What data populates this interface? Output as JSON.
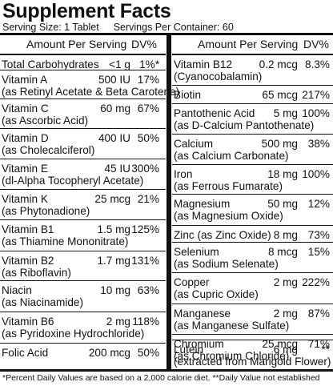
{
  "header": {
    "title": "Supplement Facts",
    "serving_size": "Serving Size: 1 Tablet",
    "servings_per_container": "Servings Per Container: 60",
    "amount_per_serving": "Amount Per Serving",
    "dv_percent": "DV%"
  },
  "left_rows": [
    {
      "name": "Total Carbohydrates",
      "sub": "",
      "amount": "<1 g",
      "dv": "1%*"
    },
    {
      "name": "Vitamin A",
      "sub": "(as Retinyl Acetate & Beta Carotene)",
      "amount": "500 IU",
      "dv": "17%"
    },
    {
      "name": "Vitamin C",
      "sub": "(as Ascorbic Acid)",
      "amount": "60 mg",
      "dv": "67%"
    },
    {
      "name": "Vitamin D",
      "sub": "(as Cholecalciferol)",
      "amount": "400 IU",
      "dv": "50%"
    },
    {
      "name": "Vitamin E",
      "sub": "(dl-Alpha Tocopheryl Acetate)",
      "amount": "45 IU",
      "dv": "300%"
    },
    {
      "name": "Vitamin K",
      "sub": "(as Phytonadione)",
      "amount": "25 mcg",
      "dv": "21%"
    },
    {
      "name": "Vitamin B1",
      "sub": "(as Thiamine Mononitrate)",
      "amount": "1.5 mg",
      "dv": "125%"
    },
    {
      "name": "Vitamin B2",
      "sub": "(as Riboflavin)",
      "amount": "1.7 mg",
      "dv": "131%"
    },
    {
      "name": "Niacin",
      "sub": "(as Niacinamide)",
      "amount": "10 mg",
      "dv": "63%"
    },
    {
      "name": "Vitamin B6",
      "sub": "(as Pyridoxine Hydrochloride)",
      "amount": "2 mg",
      "dv": "118%"
    },
    {
      "name": "Folic Acid",
      "sub": "",
      "amount": "200 mcg",
      "dv": "50%"
    }
  ],
  "right_rows": [
    {
      "name": "Vitamin B12",
      "sub": "(Cyanocobalamin)",
      "amount": "0.2 mcg",
      "dv": "8.3%"
    },
    {
      "name": "Biotin",
      "sub": "",
      "amount": "65 mcg",
      "dv": "217%"
    },
    {
      "name": "Pantothenic Acid",
      "sub": "(as D-Calcium Pantothenate)",
      "amount": "5 mg",
      "dv": "100%"
    },
    {
      "name": "Calcium",
      "sub": "(as Calcium Carbonate)",
      "amount": "500 mg",
      "dv": "38%"
    },
    {
      "name": "Iron",
      "sub": "(as Ferrous Fumarate)",
      "amount": "18 mg",
      "dv": "100%"
    },
    {
      "name": "Magnesium",
      "sub": "(as Magnesium Oxide)",
      "amount": "50 mg",
      "dv": "12%"
    },
    {
      "name": "Zinc (as Zinc Oxide)",
      "sub": "",
      "amount": "8 mg",
      "dv": "73%"
    },
    {
      "name": "Selenium",
      "sub": "(as Sodium Selenate)",
      "amount": "8 mcg",
      "dv": "15%"
    },
    {
      "name": "Copper",
      "sub": "(as Cupric Oxide)",
      "amount": "2 mg",
      "dv": "222%"
    },
    {
      "name": "Manganese",
      "sub": "(as Manganese Sulfate)",
      "amount": "2 mg",
      "dv": "87%"
    },
    {
      "name": "Chromium",
      "sub": "(as Chromium Chloride)",
      "amount": "25 mcg",
      "dv": "71%"
    },
    {
      "name": "Lutein",
      "sub": "(extracted from Marigold Flower)",
      "amount": "6 mg",
      "dv": "**"
    }
  ],
  "footer": "*Percent Daily Values are based on a 2,000 calorie diet. **Daily Value not established"
}
